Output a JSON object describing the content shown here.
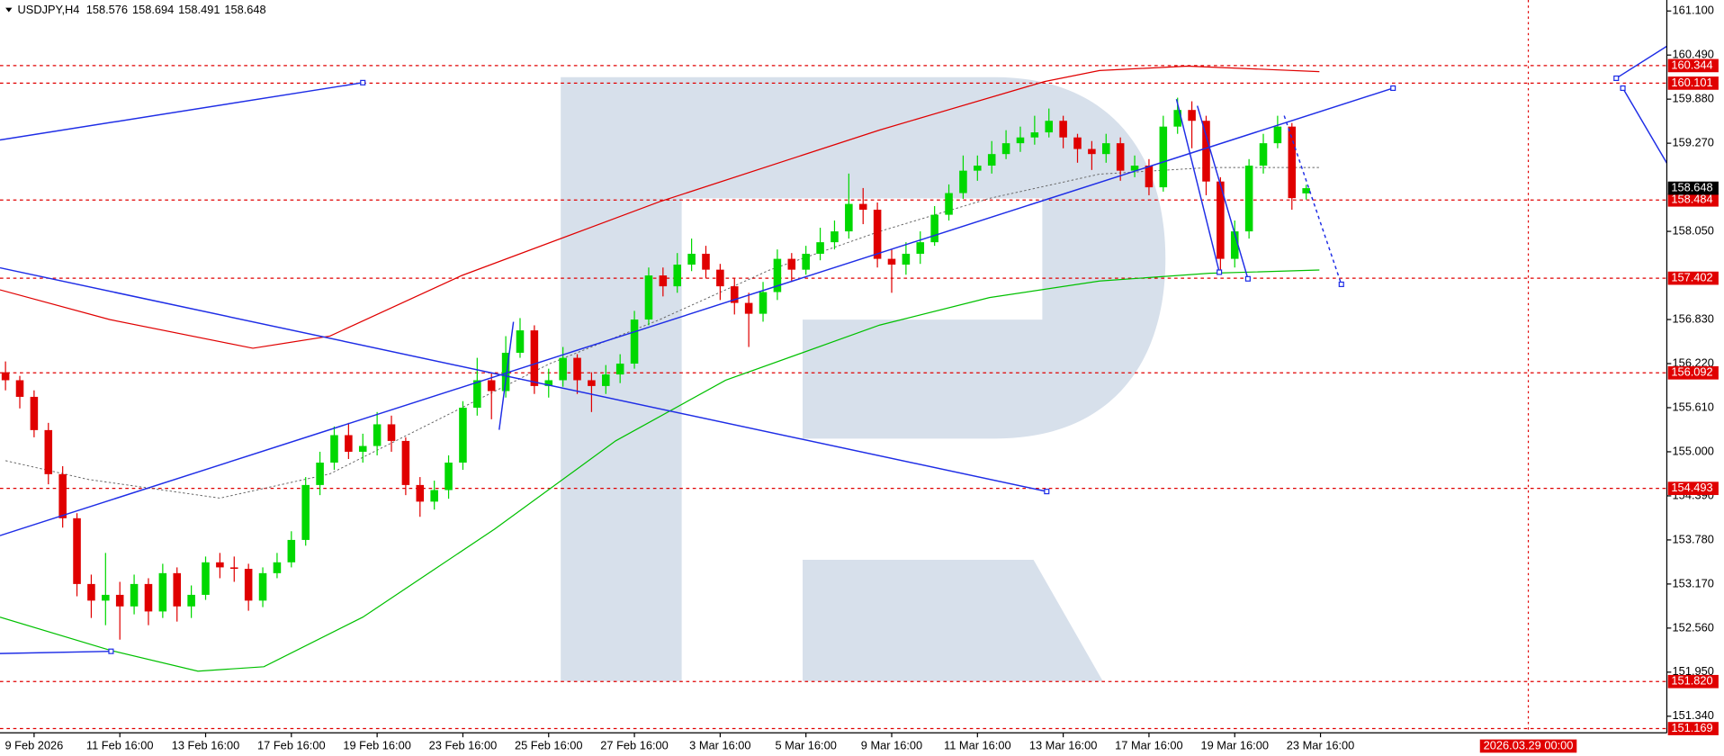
{
  "header": {
    "symbol": "USDJPY,H4",
    "open": 158.576,
    "high": 158.694,
    "low": 158.491,
    "close": 158.648
  },
  "chart_data": {
    "type": "candlestick",
    "open": [
      156.1,
      155.99,
      155.76,
      155.3,
      154.69,
      154.08,
      153.17,
      152.94,
      153.02,
      152.86,
      153.17,
      152.79,
      153.32,
      152.86,
      153.02,
      153.47,
      153.4,
      153.38,
      152.94,
      153.32,
      153.47,
      153.78,
      154.54,
      154.85,
      155.23,
      155.0,
      155.08,
      155.38,
      155.15,
      154.54,
      154.31,
      154.47,
      154.85,
      155.61,
      155.99,
      155.84,
      156.37,
      156.68,
      155.91,
      155.99,
      156.3,
      155.99,
      155.91,
      156.07,
      156.22,
      156.83,
      157.44,
      157.29,
      157.59,
      157.74,
      157.52,
      157.29,
      157.06,
      156.91,
      157.21,
      157.67,
      157.52,
      157.74,
      157.9,
      158.05,
      158.43,
      158.35,
      157.67,
      157.59,
      157.74,
      157.9,
      158.28,
      158.58,
      158.89,
      158.96,
      159.12,
      159.27,
      159.35,
      159.42,
      159.58,
      159.35,
      159.19,
      159.12,
      159.27,
      158.89,
      158.96,
      158.66,
      159.5,
      159.73,
      159.58,
      158.74,
      157.67,
      158.05,
      158.96,
      159.27,
      159.5,
      158.576
    ],
    "high": [
      156.25,
      156.05,
      155.85,
      155.4,
      154.8,
      154.15,
      153.3,
      153.6,
      153.2,
      153.3,
      153.25,
      153.45,
      153.4,
      153.15,
      153.55,
      153.6,
      153.55,
      153.45,
      153.4,
      153.6,
      153.9,
      154.65,
      155.0,
      155.35,
      155.4,
      155.25,
      155.55,
      155.5,
      155.2,
      154.65,
      154.6,
      154.95,
      155.7,
      156.3,
      156.1,
      156.6,
      156.85,
      156.75,
      156.15,
      156.45,
      156.35,
      156.1,
      156.2,
      156.35,
      156.95,
      157.55,
      157.55,
      157.75,
      157.95,
      157.85,
      157.6,
      157.4,
      157.2,
      157.35,
      157.8,
      157.75,
      157.85,
      158.1,
      158.2,
      158.85,
      158.65,
      158.45,
      157.8,
      157.9,
      158.05,
      158.4,
      158.7,
      159.1,
      159.1,
      159.3,
      159.45,
      159.5,
      159.65,
      159.75,
      159.65,
      159.4,
      159.3,
      159.4,
      159.35,
      159.1,
      159.05,
      159.65,
      159.9,
      159.85,
      159.65,
      158.8,
      158.2,
      159.05,
      159.4,
      159.65,
      159.55,
      158.694
    ],
    "low": [
      155.85,
      155.6,
      155.2,
      154.55,
      153.95,
      153.0,
      152.7,
      152.6,
      152.4,
      152.75,
      152.6,
      152.7,
      152.65,
      152.7,
      152.95,
      153.25,
      153.2,
      152.8,
      152.85,
      153.25,
      153.4,
      153.7,
      154.4,
      154.75,
      154.9,
      154.85,
      154.95,
      155.0,
      154.4,
      154.1,
      154.2,
      154.35,
      154.75,
      155.5,
      155.45,
      155.75,
      156.3,
      155.8,
      155.75,
      155.9,
      155.8,
      155.55,
      155.8,
      155.95,
      156.15,
      156.75,
      157.15,
      157.2,
      157.5,
      157.4,
      157.1,
      156.9,
      156.45,
      156.8,
      157.1,
      157.35,
      157.45,
      157.65,
      157.8,
      157.95,
      158.15,
      157.55,
      157.2,
      157.45,
      157.6,
      157.85,
      158.2,
      158.5,
      158.75,
      158.85,
      159.05,
      159.15,
      159.25,
      159.35,
      159.2,
      159.0,
      158.9,
      159.0,
      158.75,
      158.8,
      158.55,
      158.6,
      159.4,
      159.2,
      158.55,
      157.45,
      157.55,
      157.95,
      158.85,
      159.2,
      158.35,
      158.491
    ],
    "close": [
      155.99,
      155.76,
      155.3,
      154.69,
      154.08,
      153.17,
      152.94,
      153.02,
      152.86,
      153.17,
      152.79,
      153.32,
      152.86,
      153.02,
      153.47,
      153.4,
      153.38,
      152.94,
      153.32,
      153.47,
      153.78,
      154.54,
      154.85,
      155.23,
      155.0,
      155.08,
      155.38,
      155.15,
      154.54,
      154.31,
      154.47,
      154.85,
      155.61,
      155.99,
      155.84,
      156.37,
      156.68,
      155.91,
      155.99,
      156.3,
      155.99,
      155.91,
      156.07,
      156.22,
      156.83,
      157.44,
      157.29,
      157.59,
      157.74,
      157.52,
      157.29,
      157.06,
      156.91,
      157.21,
      157.67,
      157.52,
      157.74,
      157.9,
      158.05,
      158.43,
      158.35,
      157.67,
      157.59,
      157.74,
      157.9,
      158.28,
      158.58,
      158.89,
      158.96,
      159.12,
      159.27,
      159.35,
      159.42,
      159.58,
      159.35,
      159.19,
      159.12,
      159.27,
      158.89,
      158.96,
      158.66,
      159.5,
      159.73,
      159.58,
      158.74,
      157.67,
      158.05,
      158.96,
      159.27,
      159.5,
      158.51,
      158.648
    ],
    "up_color": "#00d800",
    "down_color": "#e00000",
    "xlim": [
      -0.385,
      116.23
    ],
    "xticks": [
      {
        "value": 2,
        "label": "9 Feb 2026"
      },
      {
        "value": 8,
        "label": "11 Feb 16:00"
      },
      {
        "value": 14,
        "label": "13 Feb 16:00"
      },
      {
        "value": 20,
        "label": "17 Feb 16:00"
      },
      {
        "value": 26,
        "label": "19 Feb 16:00"
      },
      {
        "value": 32,
        "label": "23 Feb 16:00"
      },
      {
        "value": 38,
        "label": "25 Feb 16:00"
      },
      {
        "value": 44,
        "label": "27 Feb 16:00"
      },
      {
        "value": 50,
        "label": "3 Mar 16:00"
      },
      {
        "value": 56,
        "label": "5 Mar 16:00"
      },
      {
        "value": 62,
        "label": "9 Mar 16:00"
      },
      {
        "value": 68,
        "label": "11 Mar 16:00"
      },
      {
        "value": 74,
        "label": "13 Mar 16:00"
      },
      {
        "value": 80,
        "label": "17 Mar 16:00"
      },
      {
        "value": 86,
        "label": "19 Mar 16:00"
      },
      {
        "value": 92,
        "label": "23 Mar 16:00"
      }
    ],
    "ylim": [
      151.11,
      161.252
    ],
    "yticks": [
      {
        "value": 161.1,
        "label": "161.100"
      },
      {
        "value": 160.49,
        "label": "160.490"
      },
      {
        "value": 159.88,
        "label": "159.880"
      },
      {
        "value": 159.27,
        "label": "159.270"
      },
      {
        "value": 158.05,
        "label": "158.050"
      },
      {
        "value": 156.83,
        "label": "156.830"
      },
      {
        "value": 156.22,
        "label": "156.220"
      },
      {
        "value": 155.61,
        "label": "155.610"
      },
      {
        "value": 155,
        "label": "155.000"
      },
      {
        "value": 154.39,
        "label": "154.390"
      },
      {
        "value": 153.78,
        "label": "153.780"
      },
      {
        "value": 153.17,
        "label": "153.170"
      },
      {
        "value": 152.56,
        "label": "152.560"
      },
      {
        "value": 151.95,
        "label": "151.950"
      },
      {
        "value": 151.34,
        "label": "151.340"
      }
    ],
    "levels": [
      160.344,
      160.101,
      158.484,
      157.402,
      156.092,
      154.493,
      {
        "value": 151.82,
        "label": "151.820"
      },
      151.169
    ],
    "level_color": "#e00000",
    "current_price": 158.648,
    "time_marker": {
      "value": 106.54,
      "label": "2026.03.29 00:00"
    }
  }
}
